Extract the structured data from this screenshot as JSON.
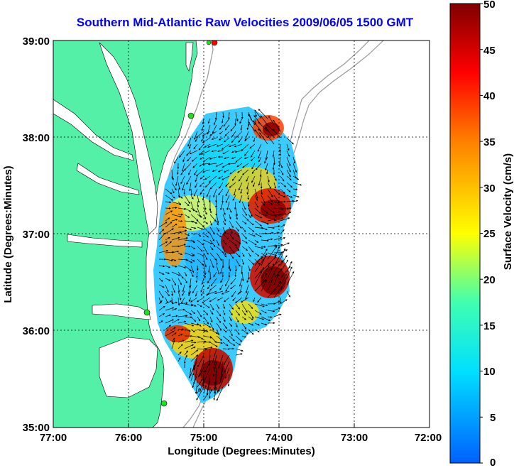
{
  "title": "Southern Mid-Atlantic Raw Velocities 2009/06/05 1500 GMT",
  "map": {
    "xlabel": "Longitude (Degrees:Minutes)",
    "ylabel": "Latitude (Degrees:Minutes)",
    "lon_range": [
      -77,
      -72
    ],
    "lat_range": [
      35,
      39
    ],
    "x_ticks": [
      "77:00",
      "76:00",
      "75:00",
      "74:00",
      "73:00",
      "72:00"
    ],
    "y_ticks": [
      "39:00",
      "38:00",
      "37:00",
      "36:00",
      "35:00"
    ],
    "land_color": "#55f0a8",
    "water_color": "#ffffff",
    "grid": "dotted"
  },
  "colorbar": {
    "label": "Surface Velocity (cm/s)",
    "ticks": [
      "50",
      "45",
      "40",
      "35",
      "30",
      "25",
      "20",
      "15",
      "10",
      "5",
      "0"
    ],
    "range": [
      0,
      50
    ],
    "colormap": "jet"
  },
  "markers": [
    {
      "name": "site-marker-top",
      "color": "#ff0000"
    },
    {
      "name": "site-marker-delaware",
      "color": "#22dd22"
    },
    {
      "name": "site-marker-virginia",
      "color": "#22dd22"
    },
    {
      "name": "site-marker-carolina",
      "color": "#22dd22"
    }
  ]
}
